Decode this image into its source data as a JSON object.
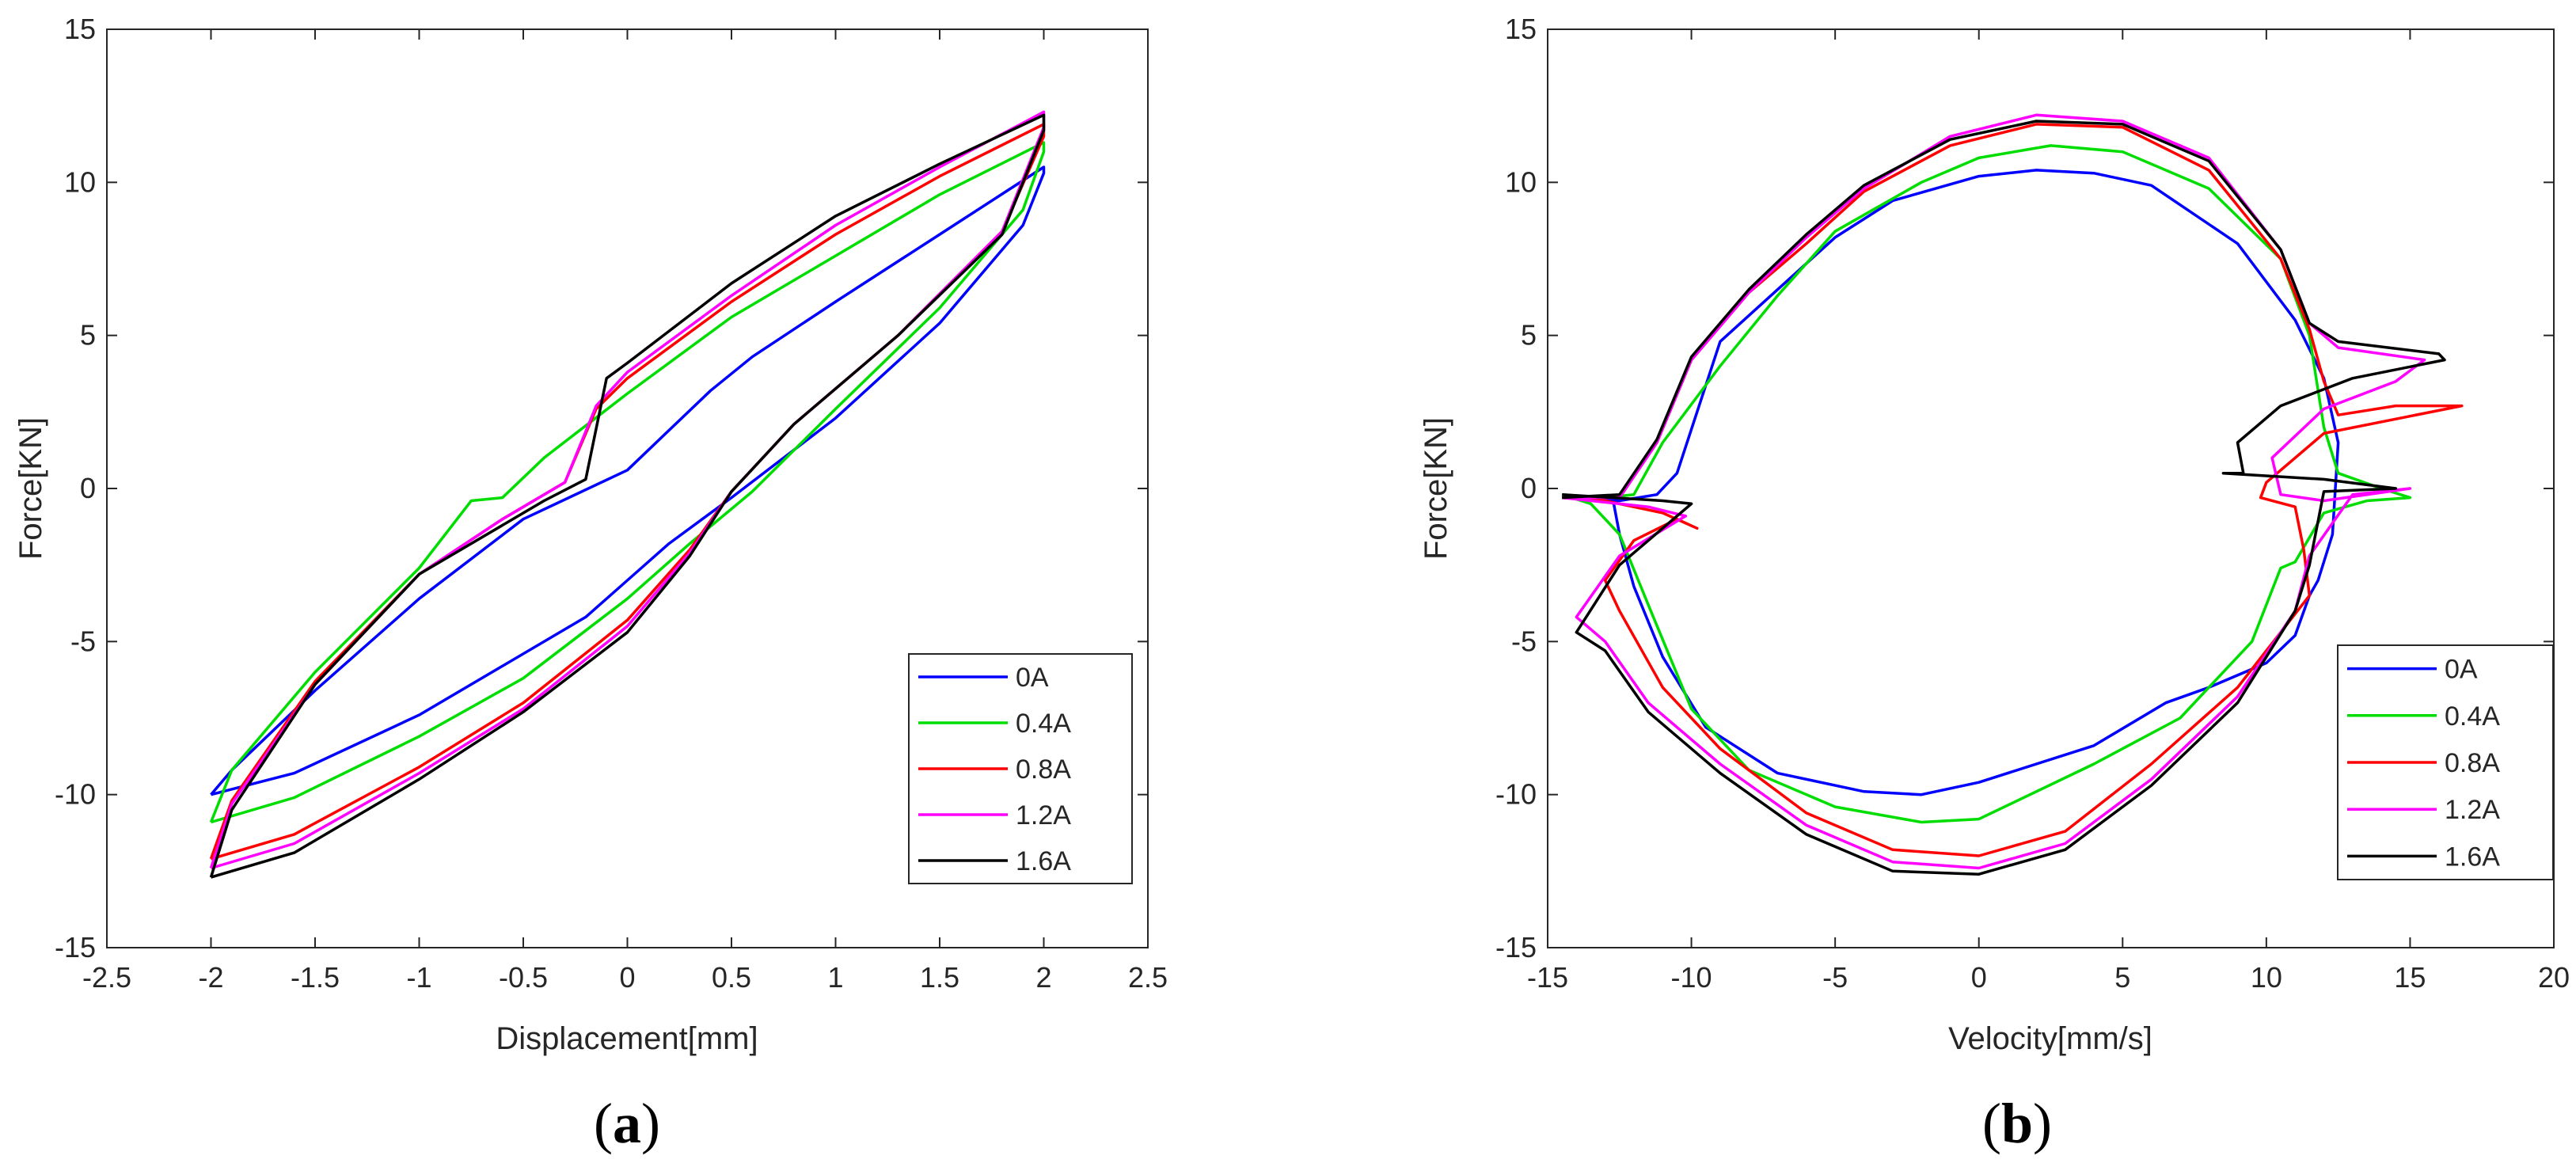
{
  "chart_data": [
    {
      "type": "line",
      "panel": "a",
      "caption_letter": "a",
      "xlabel": "Displacement[mm]",
      "ylabel": "Force[KN]",
      "xlim": [
        -2.5,
        2.5
      ],
      "ylim": [
        -15,
        15
      ],
      "xticks": [
        -2.5,
        -2,
        -1.5,
        -1,
        -0.5,
        0,
        0.5,
        1,
        1.5,
        2,
        2.5
      ],
      "xtick_labels": [
        "-2.5",
        "-2",
        "-1.5",
        "-1",
        "-0.5",
        "0",
        "0.5",
        "1",
        "1.5",
        "2",
        "2.5"
      ],
      "yticks": [
        -15,
        -10,
        -5,
        0,
        5,
        10,
        15
      ],
      "ytick_labels": [
        "-15",
        "-10",
        "-5",
        "0",
        "5",
        "10",
        "15"
      ],
      "grid": false,
      "legend_position": "bottom-right",
      "series": [
        {
          "name": "0A",
          "color": "#0000ff",
          "x": [
            -2.0,
            -1.6,
            -1.0,
            -0.6,
            -0.2,
            0.0,
            0.2,
            0.5,
            1.0,
            1.5,
            1.9,
            2.0,
            2.0,
            1.5,
            1.0,
            0.6,
            0.4,
            0.2,
            0.0,
            -0.5,
            -1.0,
            -1.5,
            -1.9,
            -2.0
          ],
          "y": [
            -10.0,
            -9.3,
            -7.4,
            -5.8,
            -4.2,
            -3.0,
            -1.8,
            -0.3,
            2.3,
            5.4,
            8.6,
            10.3,
            10.5,
            8.3,
            6.1,
            4.3,
            3.2,
            1.9,
            0.6,
            -1.0,
            -3.6,
            -6.6,
            -9.2,
            -10.0
          ]
        },
        {
          "name": "0.4A",
          "color": "#00dd00",
          "x": [
            -2.0,
            -1.6,
            -1.0,
            -0.5,
            0.0,
            0.3,
            0.6,
            1.0,
            1.5,
            1.9,
            2.0,
            2.0,
            1.5,
            1.0,
            0.5,
            0.0,
            -0.4,
            -0.6,
            -0.75,
            -1.0,
            -1.5,
            -1.9,
            -2.0
          ],
          "y": [
            -10.9,
            -10.1,
            -8.1,
            -6.2,
            -3.6,
            -1.8,
            -0.1,
            2.6,
            5.9,
            9.1,
            11.0,
            11.3,
            9.6,
            7.6,
            5.6,
            3.1,
            1.0,
            -0.3,
            -0.4,
            -2.6,
            -6.0,
            -9.2,
            -10.9
          ]
        },
        {
          "name": "0.8A",
          "color": "#ff0000",
          "x": [
            -2.0,
            -1.6,
            -1.0,
            -0.5,
            0.0,
            0.3,
            0.5,
            0.8,
            1.3,
            1.8,
            2.0,
            2.0,
            1.5,
            1.0,
            0.5,
            0.0,
            -0.15,
            -0.3,
            -0.6,
            -1.0,
            -1.5,
            -1.9,
            -2.0
          ],
          "y": [
            -12.1,
            -11.3,
            -9.1,
            -7.0,
            -4.3,
            -2.0,
            -0.1,
            2.1,
            5.0,
            8.4,
            11.5,
            11.9,
            10.2,
            8.3,
            6.1,
            3.6,
            2.6,
            0.2,
            -1.0,
            -2.8,
            -6.3,
            -10.2,
            -12.1
          ]
        },
        {
          "name": "1.2A",
          "color": "#ff00ff",
          "x": [
            -2.0,
            -1.6,
            -1.0,
            -0.5,
            0.0,
            0.3,
            0.5,
            0.8,
            1.3,
            1.8,
            2.0,
            2.0,
            1.5,
            1.0,
            0.5,
            0.0,
            -0.15,
            -0.3,
            -0.6,
            -1.0,
            -1.5,
            -1.9,
            -2.0
          ],
          "y": [
            -12.4,
            -11.6,
            -9.3,
            -7.2,
            -4.5,
            -2.1,
            -0.1,
            2.1,
            5.0,
            8.4,
            11.8,
            12.3,
            10.5,
            8.6,
            6.3,
            3.8,
            2.7,
            0.2,
            -1.0,
            -2.8,
            -6.4,
            -10.3,
            -12.4
          ]
        },
        {
          "name": "1.6A",
          "color": "#000000",
          "x": [
            -2.0,
            -1.6,
            -1.0,
            -0.5,
            0.0,
            0.3,
            0.5,
            0.8,
            1.3,
            1.8,
            2.0,
            2.0,
            1.5,
            1.0,
            0.5,
            0.0,
            -0.1,
            -0.2,
            -0.4,
            -1.0,
            -1.5,
            -1.9,
            -2.0
          ],
          "y": [
            -12.7,
            -11.9,
            -9.5,
            -7.3,
            -4.7,
            -2.2,
            -0.1,
            2.1,
            5.0,
            8.3,
            11.7,
            12.2,
            10.6,
            8.9,
            6.7,
            4.1,
            3.6,
            0.3,
            -0.4,
            -2.8,
            -6.4,
            -10.5,
            -12.7
          ]
        }
      ]
    },
    {
      "type": "line",
      "panel": "b",
      "caption_letter": "b",
      "xlabel": "Velocity[mm/s]",
      "ylabel": "Force[KN]",
      "xlim": [
        -15,
        20
      ],
      "ylim": [
        -15,
        15
      ],
      "xticks": [
        -15,
        -10,
        -5,
        0,
        5,
        10,
        15,
        20
      ],
      "xtick_labels": [
        "-15",
        "-10",
        "-5",
        "0",
        "5",
        "10",
        "15",
        "20"
      ],
      "yticks": [
        -15,
        -10,
        -5,
        0,
        5,
        10,
        15
      ],
      "ytick_labels": [
        "-15",
        "-10",
        "-5",
        "0",
        "5",
        "10",
        "15"
      ],
      "grid": false,
      "legend_position": "bottom-right",
      "series": [
        {
          "name": "0A",
          "color": "#0000ff",
          "x": [
            -14.5,
            -12.5,
            -11.2,
            -10.5,
            -9.0,
            -7.0,
            -5.0,
            -3.0,
            0.0,
            2.0,
            4.0,
            6.0,
            9.0,
            11.0,
            12.0,
            12.5,
            12.3,
            11.8,
            11.5,
            11.0,
            10.0,
            8.0,
            6.5,
            4.0,
            0.0,
            -2.0,
            -4.0,
            -7.0,
            -9.5,
            -11.0,
            -12.0,
            -12.5,
            -12.7,
            -13.2,
            -14.5
          ],
          "y": [
            -0.3,
            -0.4,
            -0.2,
            0.5,
            4.8,
            6.5,
            8.2,
            9.4,
            10.2,
            10.4,
            10.3,
            9.9,
            8.0,
            5.5,
            3.6,
            1.5,
            -1.5,
            -3.0,
            -3.5,
            -4.8,
            -5.7,
            -6.5,
            -7.0,
            -8.4,
            -9.6,
            -10.0,
            -9.9,
            -9.3,
            -7.8,
            -5.5,
            -3.2,
            -1.5,
            -0.5,
            -0.3,
            -0.3
          ]
        },
        {
          "name": "0.4A",
          "color": "#00dd00",
          "x": [
            -14.5,
            -13.0,
            -12.0,
            -11.0,
            -9.0,
            -7.0,
            -5.0,
            -2.0,
            0.0,
            2.5,
            5.0,
            8.0,
            10.5,
            11.5,
            12.0,
            12.5,
            14.0,
            15.0,
            13.5,
            12.0,
            11.0,
            10.5,
            9.5,
            7.0,
            4.0,
            0.0,
            -2.0,
            -5.0,
            -8.0,
            -10.0,
            -11.5,
            -12.5,
            -13.5,
            -14.5
          ],
          "y": [
            -0.2,
            -0.3,
            -0.2,
            1.5,
            4.0,
            6.3,
            8.4,
            10.0,
            10.8,
            11.2,
            11.0,
            9.8,
            7.5,
            5.0,
            2.0,
            0.5,
            0.0,
            -0.3,
            -0.4,
            -0.8,
            -2.4,
            -2.6,
            -5.0,
            -7.5,
            -9.0,
            -10.8,
            -10.9,
            -10.4,
            -9.2,
            -7.2,
            -3.8,
            -1.5,
            -0.5,
            -0.2
          ]
        },
        {
          "name": "0.8A",
          "color": "#ff0000",
          "x": [
            -14.5,
            -12.5,
            -11.2,
            -10.0,
            -8.0,
            -6.0,
            -4.0,
            -1.0,
            2.0,
            5.0,
            8.0,
            10.5,
            11.5,
            12.0,
            12.5,
            14.5,
            16.8,
            12.0,
            10.0,
            9.8,
            11.0,
            11.3,
            11.5,
            9.0,
            6.0,
            3.0,
            0.0,
            -3.0,
            -6.0,
            -9.0,
            -11.0,
            -12.5,
            -13.0,
            -12.0,
            -10.5,
            -9.8,
            -11.0,
            -13.0,
            -14.5
          ],
          "y": [
            -0.3,
            -0.3,
            1.5,
            4.2,
            6.4,
            8.0,
            9.7,
            11.2,
            11.9,
            11.8,
            10.4,
            7.5,
            5.2,
            3.5,
            2.4,
            2.7,
            2.7,
            1.8,
            0.2,
            -0.3,
            -0.6,
            -2.0,
            -3.5,
            -6.5,
            -9.0,
            -11.2,
            -12.0,
            -11.8,
            -10.6,
            -8.5,
            -6.5,
            -4.0,
            -3.0,
            -1.7,
            -1.0,
            -1.3,
            -0.8,
            -0.4,
            -0.3
          ]
        },
        {
          "name": "1.2A",
          "color": "#ff00ff",
          "x": [
            -14.5,
            -12.5,
            -11.2,
            -10.0,
            -8.0,
            -6.0,
            -4.0,
            -1.0,
            2.0,
            5.0,
            8.0,
            10.5,
            11.5,
            12.5,
            15.5,
            14.5,
            12.0,
            10.2,
            10.5,
            12.0,
            15.0,
            13.0,
            11.5,
            11.0,
            9.0,
            6.0,
            3.0,
            0.0,
            -3.0,
            -6.0,
            -9.0,
            -11.5,
            -13.0,
            -14.0,
            -12.5,
            -10.2,
            -11.5,
            -14.5
          ],
          "y": [
            -0.3,
            -0.3,
            1.5,
            4.2,
            6.4,
            8.2,
            9.8,
            11.5,
            12.2,
            12.0,
            10.8,
            7.8,
            5.4,
            4.6,
            4.2,
            3.5,
            2.6,
            1.0,
            -0.2,
            -0.4,
            0.0,
            -0.2,
            -2.2,
            -4.0,
            -6.8,
            -9.5,
            -11.6,
            -12.4,
            -12.2,
            -11.0,
            -9.0,
            -7.0,
            -5.0,
            -4.2,
            -2.2,
            -0.9,
            -0.6,
            -0.3
          ]
        },
        {
          "name": "1.6A",
          "color": "#000000",
          "x": [
            -14.5,
            -12.5,
            -11.2,
            -10.0,
            -8.0,
            -6.0,
            -4.0,
            -1.0,
            2.0,
            5.0,
            8.0,
            10.5,
            11.5,
            12.5,
            16.0,
            16.2,
            13.0,
            10.5,
            9.0,
            9.2,
            8.5,
            12.0,
            14.5,
            12.0,
            11.5,
            11.0,
            9.0,
            6.0,
            3.0,
            0.0,
            -3.0,
            -6.0,
            -9.0,
            -11.5,
            -13.0,
            -14.0,
            -12.5,
            -10.0,
            -11.0,
            -14.5
          ],
          "y": [
            -0.3,
            -0.2,
            1.6,
            4.3,
            6.5,
            8.3,
            9.9,
            11.4,
            12.0,
            11.9,
            10.7,
            7.8,
            5.4,
            4.8,
            4.4,
            4.2,
            3.6,
            2.7,
            1.5,
            0.5,
            0.5,
            0.3,
            0.0,
            -0.1,
            -2.5,
            -4.0,
            -7.0,
            -9.7,
            -11.8,
            -12.6,
            -12.5,
            -11.3,
            -9.3,
            -7.3,
            -5.3,
            -4.7,
            -2.5,
            -0.5,
            -0.4,
            -0.2
          ]
        }
      ]
    }
  ]
}
